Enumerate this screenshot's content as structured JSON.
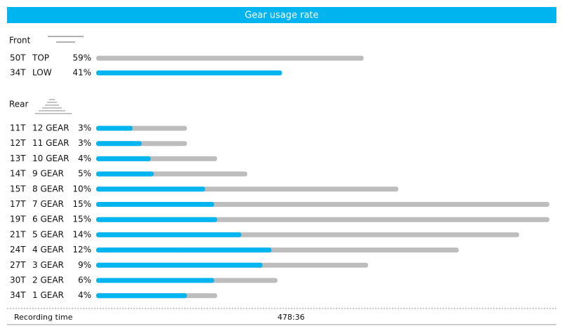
{
  "header": {
    "title": "Gear usage rate"
  },
  "front": {
    "label": "Front",
    "rows": [
      {
        "teeth": "50T",
        "gear": "TOP",
        "value": 59,
        "value_label": "59%",
        "color": "#bdbdbd"
      },
      {
        "teeth": "34T",
        "gear": "LOW",
        "value": 41,
        "value_label": "41%",
        "color": "#00b4ef"
      }
    ]
  },
  "rear": {
    "label": "Rear",
    "bar_color": "#bdbdbd",
    "share_color": "#00b4ef",
    "rows": [
      {
        "teeth": "11T",
        "gear": "12 GEAR",
        "value": 3,
        "value_label": "3%",
        "low_share": 1.2
      },
      {
        "teeth": "12T",
        "gear": "11 GEAR",
        "value": 3,
        "value_label": "3%",
        "low_share": 1.5
      },
      {
        "teeth": "13T",
        "gear": "10 GEAR",
        "value": 4,
        "value_label": "4%",
        "low_share": 1.8
      },
      {
        "teeth": "14T",
        "gear": "9 GEAR",
        "value": 5,
        "value_label": "5%",
        "low_share": 1.9
      },
      {
        "teeth": "15T",
        "gear": "8 GEAR",
        "value": 10,
        "value_label": "10%",
        "low_share": 3.6
      },
      {
        "teeth": "17T",
        "gear": "7 GEAR",
        "value": 15,
        "value_label": "15%",
        "low_share": 3.9
      },
      {
        "teeth": "19T",
        "gear": "6 GEAR",
        "value": 15,
        "value_label": "15%",
        "low_share": 4.0
      },
      {
        "teeth": "21T",
        "gear": "5 GEAR",
        "value": 14,
        "value_label": "14%",
        "low_share": 4.8
      },
      {
        "teeth": "24T",
        "gear": "4 GEAR",
        "value": 12,
        "value_label": "12%",
        "low_share": 5.8
      },
      {
        "teeth": "27T",
        "gear": "3 GEAR",
        "value": 9,
        "value_label": "9%",
        "low_share": 5.5
      },
      {
        "teeth": "30T",
        "gear": "2 GEAR",
        "value": 6,
        "value_label": "6%",
        "low_share": 3.9
      },
      {
        "teeth": "34T",
        "gear": "1 GEAR",
        "value": 4,
        "value_label": "4%",
        "low_share": 3.0
      }
    ]
  },
  "footer": {
    "label": "Recording time",
    "value": "478:36"
  }
}
